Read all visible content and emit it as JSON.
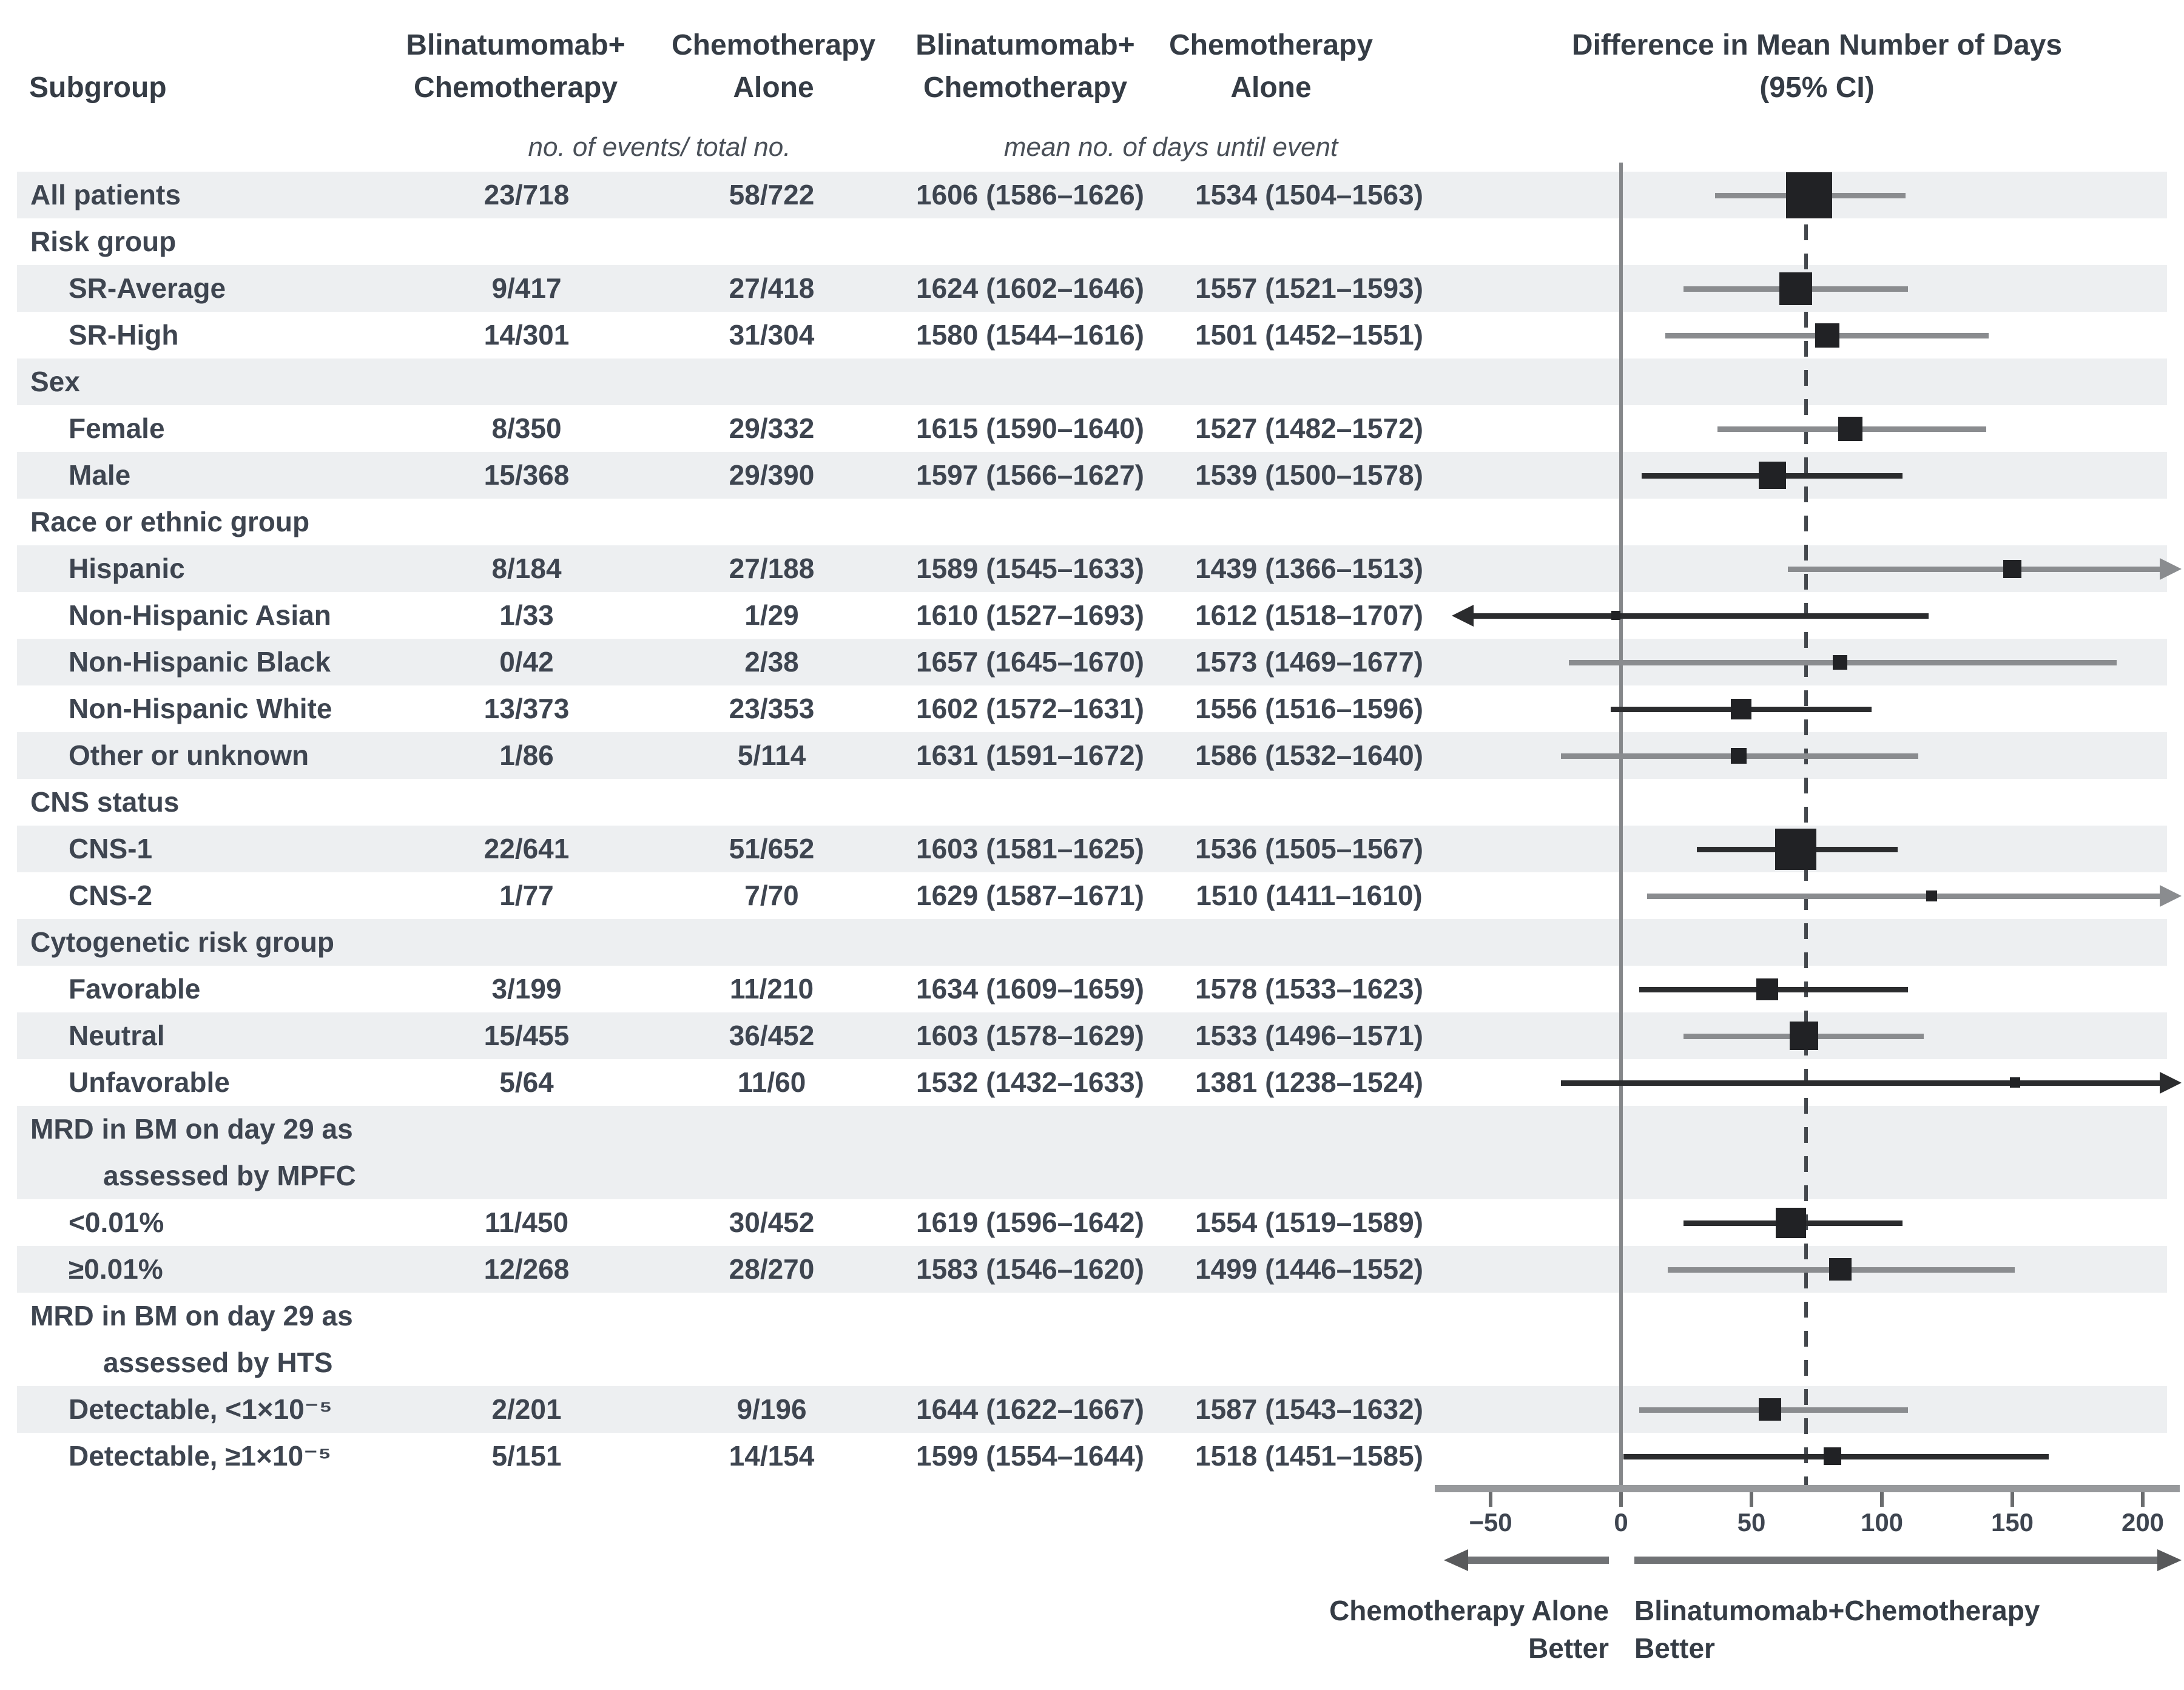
{
  "header": {
    "subgroup": "Subgroup",
    "blina_line1": "Blinatumomab+",
    "blina_line2": "Chemotherapy",
    "chemo_line1": "Chemotherapy",
    "chemo_line2": "Alone",
    "events_note": "no. of events/ total no.",
    "days_note": "mean no. of days until event",
    "diff_line1": "Difference in Mean Number of Days",
    "diff_line2": "(95% CI)"
  },
  "footer": {
    "left_line1": "Chemotherapy Alone",
    "left_line2": "Better",
    "right_line1": "Blinatumomab+Chemotherapy",
    "right_line2": "Better"
  },
  "colors": {
    "band": "#edeff1",
    "text": "#3e4550",
    "marker": "#212225",
    "ci_gray": "#8a8c8f",
    "ci_dark": "#2b2c2e",
    "axis": "#97999c",
    "dashed_line": "#43474c",
    "zero_line": "#85878a"
  },
  "chart_data": {
    "type": "forest",
    "title": "Difference in Mean Number of Days (95% CI)",
    "x_axis": {
      "range": [
        -50,
        200
      ],
      "tick_values": [
        -50,
        0,
        50,
        100,
        150,
        200
      ],
      "tick_labels": [
        "−50",
        "0",
        "50",
        "100",
        "150",
        "200"
      ],
      "zero_line": 0,
      "dashed_reference": 71
    },
    "rows": [
      {
        "label": "All patients",
        "indent": 0,
        "shade": true,
        "b": "23/718",
        "c": "58/722",
        "bd": "1606 (1586–1626)",
        "cd": "1534 (1504–1563)",
        "est": 72,
        "lo": 36,
        "hi": 109,
        "sq": 76,
        "line": "gray"
      },
      {
        "label": "Risk group",
        "indent": 0,
        "shade": false,
        "group": true
      },
      {
        "label": "SR-Average",
        "indent": 1,
        "shade": true,
        "b": "9/417",
        "c": "27/418",
        "bd": "1624 (1602–1646)",
        "cd": "1557 (1521–1593)",
        "est": 67,
        "lo": 24,
        "hi": 110,
        "sq": 54,
        "line": "gray"
      },
      {
        "label": "SR-High",
        "indent": 1,
        "shade": false,
        "b": "14/301",
        "c": "31/304",
        "bd": "1580 (1544–1616)",
        "cd": "1501 (1452–1551)",
        "est": 79,
        "lo": 17,
        "hi": 141,
        "sq": 40,
        "line": "gray"
      },
      {
        "label": "Sex",
        "indent": 0,
        "shade": true,
        "group": true
      },
      {
        "label": "Female",
        "indent": 1,
        "shade": false,
        "b": "8/350",
        "c": "29/332",
        "bd": "1615 (1590–1640)",
        "cd": "1527 (1482–1572)",
        "est": 88,
        "lo": 37,
        "hi": 140,
        "sq": 40,
        "line": "gray"
      },
      {
        "label": "Male",
        "indent": 1,
        "shade": true,
        "b": "15/368",
        "c": "29/390",
        "bd": "1597 (1566–1627)",
        "cd": "1539 (1500–1578)",
        "est": 58,
        "lo": 8,
        "hi": 108,
        "sq": 45,
        "line": "dark"
      },
      {
        "label": "Race or ethnic group",
        "indent": 0,
        "shade": false,
        "group": true
      },
      {
        "label": "Hispanic",
        "indent": 1,
        "shade": true,
        "b": "8/184",
        "c": "27/188",
        "bd": "1589 (1545–1633)",
        "cd": "1439 (1366–1513)",
        "est": 150,
        "lo": 64,
        "hi": 207,
        "arrow": "right",
        "sq": 30,
        "line": "gray"
      },
      {
        "label": "Non-Hispanic Asian",
        "indent": 1,
        "shade": false,
        "b": "1/33",
        "c": "1/29",
        "bd": "1610 (1527–1693)",
        "cd": "1612 (1518–1707)",
        "est": -2,
        "lo": -57,
        "hi": 118,
        "arrow": "left",
        "sq": 15,
        "line": "dark"
      },
      {
        "label": "Non-Hispanic Black",
        "indent": 1,
        "shade": true,
        "b": "0/42",
        "c": "2/38",
        "bd": "1657 (1645–1670)",
        "cd": "1573 (1469–1677)",
        "est": 84,
        "lo": -20,
        "hi": 190,
        "sq": 24,
        "line": "gray"
      },
      {
        "label": "Non-Hispanic White",
        "indent": 1,
        "shade": false,
        "b": "13/373",
        "c": "23/353",
        "bd": "1602 (1572–1631)",
        "cd": "1556 (1516–1596)",
        "est": 46,
        "lo": -4,
        "hi": 96,
        "sq": 34,
        "line": "dark"
      },
      {
        "label": "Other or unknown",
        "indent": 1,
        "shade": true,
        "b": "1/86",
        "c": "5/114",
        "bd": "1631 (1591–1672)",
        "cd": "1586 (1532–1640)",
        "est": 45,
        "lo": -23,
        "hi": 114,
        "sq": 26,
        "line": "gray"
      },
      {
        "label": "CNS status",
        "indent": 0,
        "shade": false,
        "group": true
      },
      {
        "label": "CNS-1",
        "indent": 1,
        "shade": true,
        "b": "22/641",
        "c": "51/652",
        "bd": "1603 (1581–1625)",
        "cd": "1536 (1505–1567)",
        "est": 67,
        "lo": 29,
        "hi": 106,
        "sq": 68,
        "line": "dark"
      },
      {
        "label": "CNS-2",
        "indent": 1,
        "shade": false,
        "b": "1/77",
        "c": "7/70",
        "bd": "1629 (1587–1671)",
        "cd": "1510 (1411–1610)",
        "est": 119,
        "lo": 10,
        "hi": 207,
        "arrow": "right",
        "sq": 18,
        "line": "gray"
      },
      {
        "label": "Cytogenetic risk group",
        "indent": 0,
        "shade": true,
        "group": true
      },
      {
        "label": "Favorable",
        "indent": 1,
        "shade": false,
        "b": "3/199",
        "c": "11/210",
        "bd": "1634 (1609–1659)",
        "cd": "1578 (1533–1623)",
        "est": 56,
        "lo": 7,
        "hi": 110,
        "sq": 36,
        "line": "dark"
      },
      {
        "label": "Neutral",
        "indent": 1,
        "shade": true,
        "b": "15/455",
        "c": "36/452",
        "bd": "1603 (1578–1629)",
        "cd": "1533 (1496–1571)",
        "est": 70,
        "lo": 24,
        "hi": 116,
        "sq": 47,
        "line": "gray"
      },
      {
        "label": "Unfavorable",
        "indent": 1,
        "shade": false,
        "b": "5/64",
        "c": "11/60",
        "bd": "1532 (1432–1633)",
        "cd": "1381 (1238–1524)",
        "est": 151,
        "lo": -23,
        "hi": 207,
        "arrow": "right",
        "sq": 17,
        "line": "dark"
      },
      {
        "label": "MRD in BM on day 29 as",
        "label2": "assessed by MPFC",
        "indent": 0,
        "shade": true,
        "group": true,
        "span": 2
      },
      {
        "label": "<0.01%",
        "indent": 1,
        "shade": false,
        "b": "11/450",
        "c": "30/452",
        "bd": "1619 (1596–1642)",
        "cd": "1554 (1519–1589)",
        "est": 65,
        "lo": 24,
        "hi": 108,
        "sq": 50,
        "line": "dark"
      },
      {
        "label": "≥0.01%",
        "indent": 1,
        "shade": true,
        "b": "12/268",
        "c": "28/270",
        "bd": "1583 (1546–1620)",
        "cd": "1499 (1446–1552)",
        "est": 84,
        "lo": 18,
        "hi": 151,
        "sq": 37,
        "line": "gray"
      },
      {
        "label": "MRD in BM on day 29 as",
        "label2": "assessed by HTS",
        "indent": 0,
        "shade": false,
        "group": true,
        "span": 2
      },
      {
        "label": "Detectable, <1×10⁻⁵",
        "indent": 1,
        "shade": true,
        "b": "2/201",
        "c": "9/196",
        "bd": "1644 (1622–1667)",
        "cd": "1587 (1543–1632)",
        "est": 57,
        "lo": 7,
        "hi": 110,
        "sq": 37,
        "line": "gray"
      },
      {
        "label": "Detectable, ≥1×10⁻⁵",
        "indent": 1,
        "shade": false,
        "b": "5/151",
        "c": "14/154",
        "bd": "1599 (1554–1644)",
        "cd": "1518 (1451–1585)",
        "est": 81,
        "lo": 1,
        "hi": 164,
        "sq": 29,
        "line": "dark"
      }
    ]
  }
}
